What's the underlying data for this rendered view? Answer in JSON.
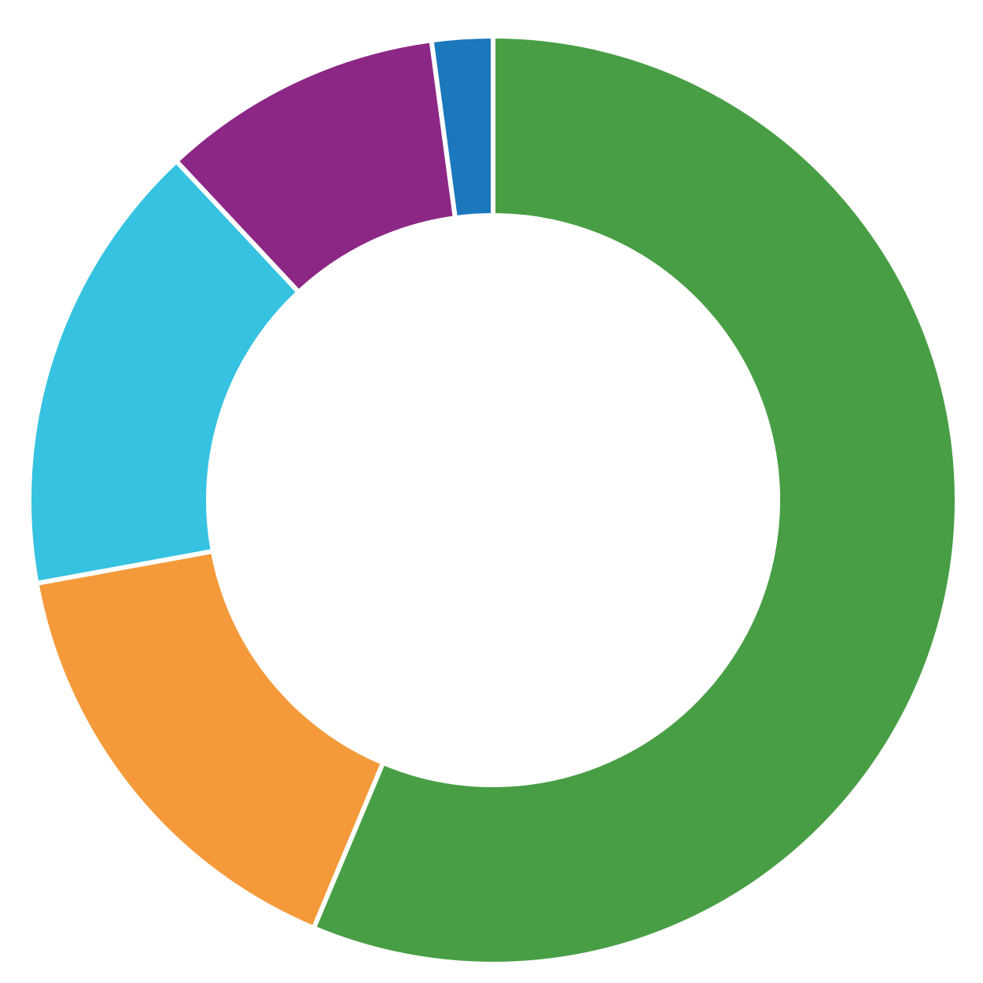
{
  "chart_data": {
    "type": "pie",
    "variant": "donut",
    "title": "",
    "start_angle_deg": 0,
    "direction": "clockwise",
    "background": "#ffffff",
    "slices": [
      {
        "value": 58.4,
        "color": "#489e45"
      },
      {
        "value": 16.4,
        "color": "#f59a3a"
      },
      {
        "value": 16.5,
        "color": "#36c2e1"
      },
      {
        "value": 10.2,
        "color": "#8c2786"
      },
      {
        "value": 2.2,
        "color": "#1b78bd"
      }
    ]
  }
}
